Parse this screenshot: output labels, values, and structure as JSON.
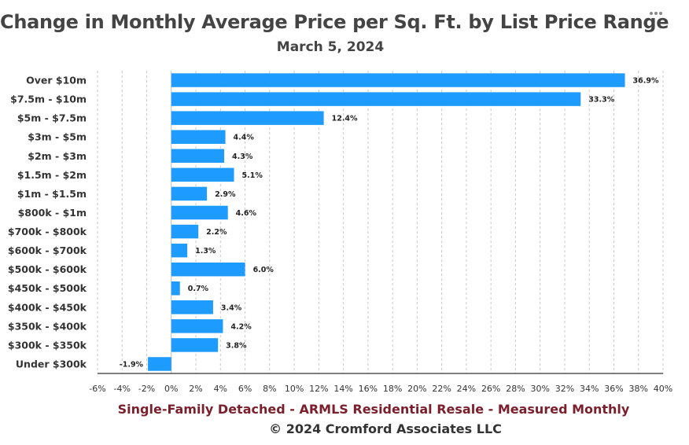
{
  "title": "Change in Monthly Average Price per Sq. Ft. by List Price Range",
  "subtitle": "March 5, 2024",
  "menu_icon": "ellipsis-icon",
  "footer": {
    "source": "Single-Family Detached - ARMLS Residential Resale - Measured Monthly",
    "copyright": "© 2024 Cromford Associates LLC"
  },
  "colors": {
    "bar": "#1e9bff",
    "footer_source": "#7a1f2b",
    "text": "#444444"
  },
  "chart_data": {
    "type": "bar",
    "orientation": "horizontal",
    "title": "Change in Monthly Average Price per Sq. Ft. by List Price Range",
    "subtitle": "March 5, 2024",
    "xlabel": "",
    "ylabel": "",
    "xlim": [
      -6,
      40
    ],
    "x_ticks": [
      -6,
      -4,
      -2,
      0,
      2,
      4,
      6,
      8,
      10,
      12,
      14,
      16,
      18,
      20,
      22,
      24,
      26,
      28,
      30,
      32,
      34,
      36,
      38,
      40
    ],
    "x_tick_suffix": "%",
    "grid": "vertical dashed",
    "legend": "none",
    "categories": [
      "Over $10m",
      "$7.5m - $10m",
      "$5m - $7.5m",
      "$3m - $5m",
      "$2m - $3m",
      "$1.5m - $2m",
      "$1m - $1.5m",
      "$800k - $1m",
      "$700k - $800k",
      "$600k - $700k",
      "$500k - $600k",
      "$450k - $500k",
      "$400k - $450k",
      "$350k - $400k",
      "$300k - $350k",
      "Under $300k"
    ],
    "values": [
      36.9,
      33.3,
      12.4,
      4.4,
      4.3,
      5.1,
      2.9,
      4.6,
      2.2,
      1.3,
      6.0,
      0.7,
      3.4,
      4.2,
      3.8,
      -1.9
    ],
    "data_labels": [
      "36.9%",
      "33.3%",
      "12.4%",
      "4.4%",
      "4.3%",
      "5.1%",
      "2.9%",
      "4.6%",
      "2.2%",
      "1.3%",
      "6.0%",
      "0.7%",
      "3.4%",
      "4.2%",
      "3.8%",
      "-1.9%"
    ]
  }
}
